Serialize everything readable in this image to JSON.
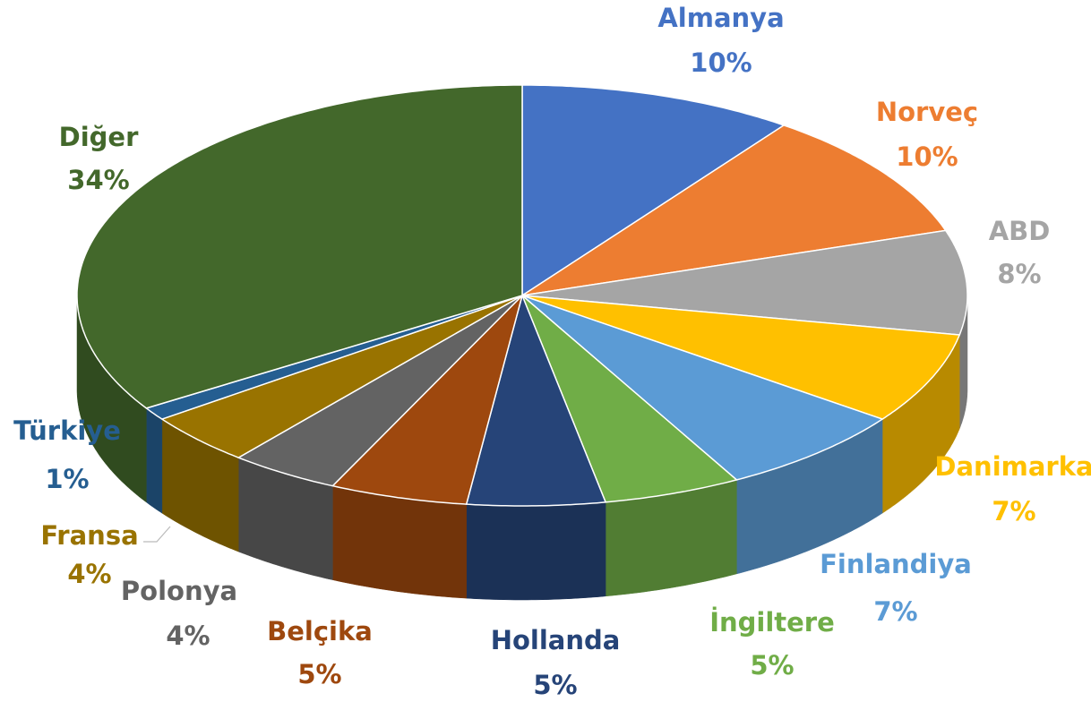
{
  "chart_data": {
    "type": "pie",
    "categories": [
      "Almanya",
      "Norveç",
      "ABD",
      "Danimarka",
      "Finlandiya",
      "İngiltere",
      "Hollanda",
      "Belçika",
      "Polonya",
      "Fransa",
      "Türkiye",
      "Diğer"
    ],
    "values": [
      10,
      10,
      8,
      7,
      7,
      5,
      5,
      5,
      4,
      4,
      1,
      34
    ],
    "value_labels": [
      "10%",
      "10%",
      "8%",
      "7%",
      "7%",
      "5%",
      "5%",
      "5%",
      "4%",
      "4%",
      "1%",
      "34%"
    ],
    "colors": [
      "#4472c4",
      "#ed7d31",
      "#a5a5a5",
      "#ffc000",
      "#5b9bd5",
      "#70ad47",
      "#264478",
      "#9e480e",
      "#636363",
      "#997300",
      "#255e91",
      "#43682b"
    ]
  }
}
